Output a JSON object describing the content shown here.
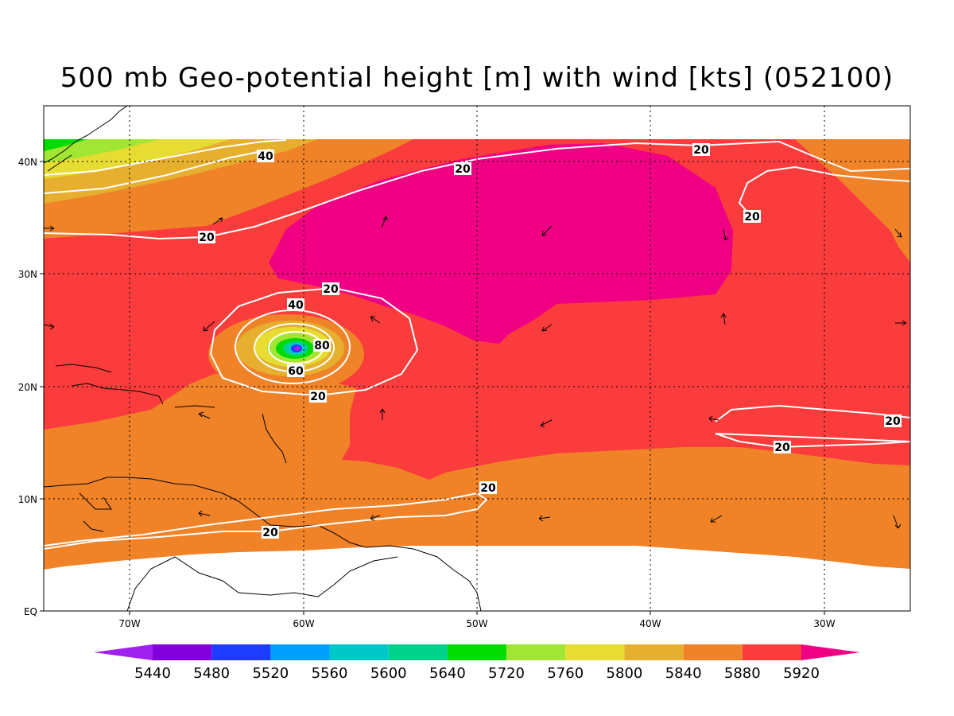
{
  "title": "500 mb Geo-potential height [m] with wind [kts] (052100)",
  "lat_labels": [
    "40N",
    "30N",
    "20N",
    "10N",
    "EQ"
  ],
  "lon_labels": [
    "70W",
    "60W",
    "50W",
    "40W",
    "30W"
  ],
  "colorbar": {
    "labels": [
      "5440",
      "5480",
      "5520",
      "5560",
      "5600",
      "5640",
      "5720",
      "5760",
      "5800",
      "5840",
      "5880",
      "5920"
    ],
    "colors": [
      "#a020f0",
      "#8200dc",
      "#1e3cff",
      "#00a0ff",
      "#00c8c8",
      "#00d28c",
      "#00dc00",
      "#a0e632",
      "#e6dc32",
      "#e6af2d",
      "#f08228",
      "#fa3c3c",
      "#f00082"
    ]
  },
  "contour_labels": [
    "40",
    "20",
    "20",
    "20",
    "20",
    "20",
    "40",
    "80",
    "60",
    "20",
    "20",
    "20",
    "20",
    "20"
  ]
}
